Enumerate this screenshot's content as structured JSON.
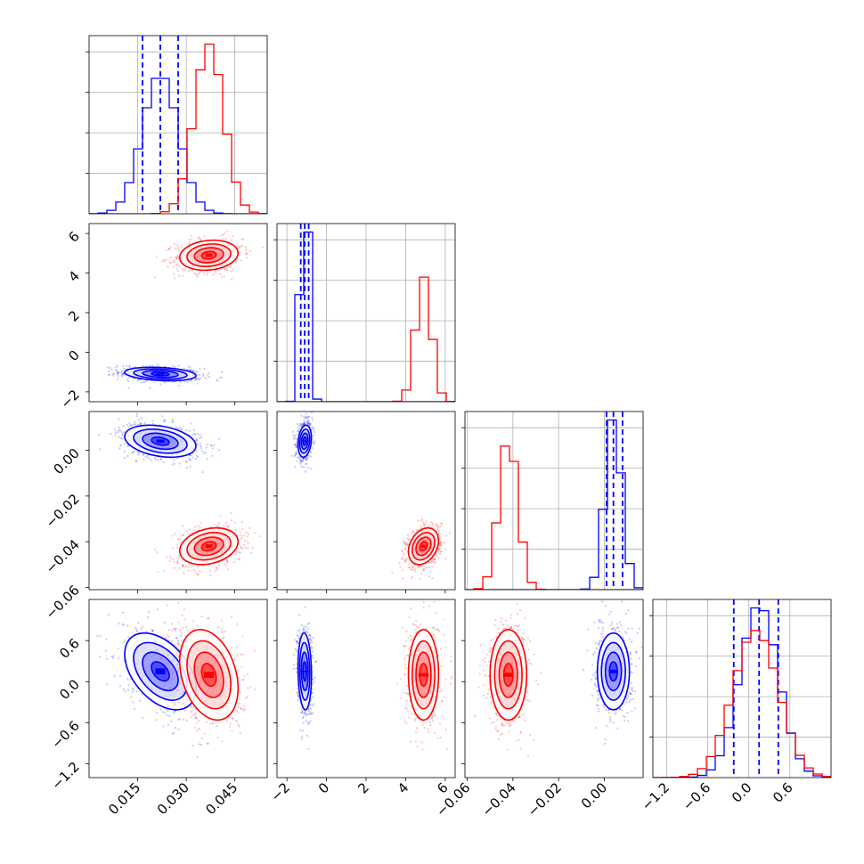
{
  "chart_data": {
    "type": "corner",
    "grid": true,
    "colors": {
      "series_a": "#0000ff",
      "series_b": "#ff0000"
    },
    "axes": [
      {
        "range": [
          0.0,
          0.055
        ],
        "ticks": [
          0.015,
          0.03,
          0.045
        ],
        "tick_labels": [
          "0.015",
          "0.030",
          "0.045"
        ]
      },
      {
        "range": [
          -2.5,
          6.5
        ],
        "ticks": [
          -2,
          0,
          2,
          4,
          6
        ],
        "tick_labels": [
          "−2",
          "0",
          "2",
          "4",
          "6"
        ]
      },
      {
        "range": [
          -0.061,
          0.017
        ],
        "ticks": [
          -0.06,
          -0.04,
          -0.02,
          0.0
        ],
        "tick_labels": [
          "−0.06",
          "−0.04",
          "−0.02",
          "0.00"
        ]
      },
      {
        "range": [
          -1.4,
          1.2
        ],
        "ticks": [
          -1.2,
          -0.6,
          0.0,
          0.6
        ],
        "tick_labels": [
          "−1.2",
          "−0.6",
          "0.0",
          "0.6"
        ]
      }
    ],
    "series": [
      {
        "key": "series_a",
        "color": "#0000ff",
        "mean": [
          0.022,
          -1.1,
          0.004,
          0.15
        ],
        "std": [
          0.0055,
          0.17,
          0.0035,
          0.28
        ],
        "corr": [
          [
            1,
            -0.25,
            -0.3,
            -0.45
          ],
          [
            -0.25,
            1,
            0.2,
            -0.1
          ],
          [
            -0.3,
            0.2,
            1,
            0.0
          ],
          [
            -0.45,
            -0.1,
            0.0,
            1
          ]
        ],
        "quantile_lines": [
          [
            0.0165,
            0.022,
            0.0275
          ],
          [
            -1.3,
            -1.1,
            -0.9
          ],
          [
            0.001,
            0.004,
            0.008
          ],
          [
            -0.22,
            0.15,
            0.43
          ]
        ]
      },
      {
        "key": "series_b",
        "color": "#ff0000",
        "mean": [
          0.037,
          4.9,
          -0.042,
          0.1
        ],
        "std": [
          0.0045,
          0.38,
          0.004,
          0.33
        ],
        "corr": [
          [
            1,
            0.15,
            0.25,
            -0.3
          ],
          [
            0.15,
            1,
            0.3,
            0.0
          ],
          [
            0.25,
            0.3,
            1,
            0.0
          ],
          [
            -0.3,
            0.0,
            0.0,
            1
          ]
        ],
        "quantile_lines": null
      }
    ]
  }
}
